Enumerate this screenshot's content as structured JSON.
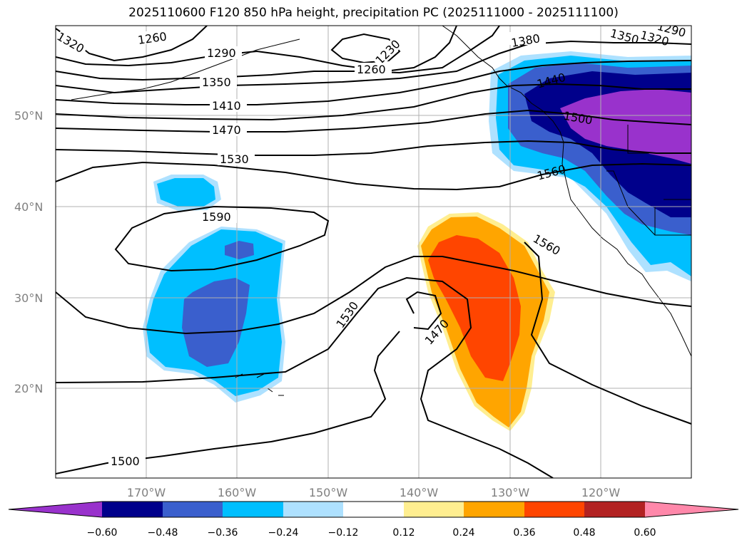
{
  "title": "2025110600 F120 850 hPa height, precipitation PC (2025111000 - 2025111100)",
  "lat_labels": [
    "50°N",
    "40°N",
    "30°N",
    "20°N"
  ],
  "lon_labels": [
    "170°W",
    "160°W",
    "150°W",
    "140°W",
    "130°W",
    "120°W"
  ],
  "contour_labels": [
    "1320",
    "1260",
    "1290",
    "1230",
    "1260",
    "1350",
    "1410",
    "1470",
    "1530",
    "1590",
    "1380",
    "1350",
    "1320",
    "1290",
    "1440",
    "1500",
    "1560",
    "1560",
    "1530",
    "1470",
    "1500"
  ],
  "colorbar": {
    "colors": [
      "#9932cc",
      "#00008b",
      "#3a5fcd",
      "#00bfff",
      "#aee1ff",
      "#ffffff",
      "#ffee90",
      "#ffa500",
      "#ff4500",
      "#b22222",
      "#ff88aa"
    ],
    "tick_labels": [
      "−0.60",
      "−0.48",
      "−0.36",
      "−0.24",
      "−0.12",
      "0.12",
      "0.24",
      "0.36",
      "0.48",
      "0.60"
    ]
  },
  "palette": {
    "purple": "#9932cc",
    "navy": "#00008b",
    "blue": "#3a5fcd",
    "sky": "#00bfff",
    "light": "#aee1ff",
    "yellow": "#ffee90",
    "orange": "#ffa500",
    "redorange": "#ff4500"
  }
}
